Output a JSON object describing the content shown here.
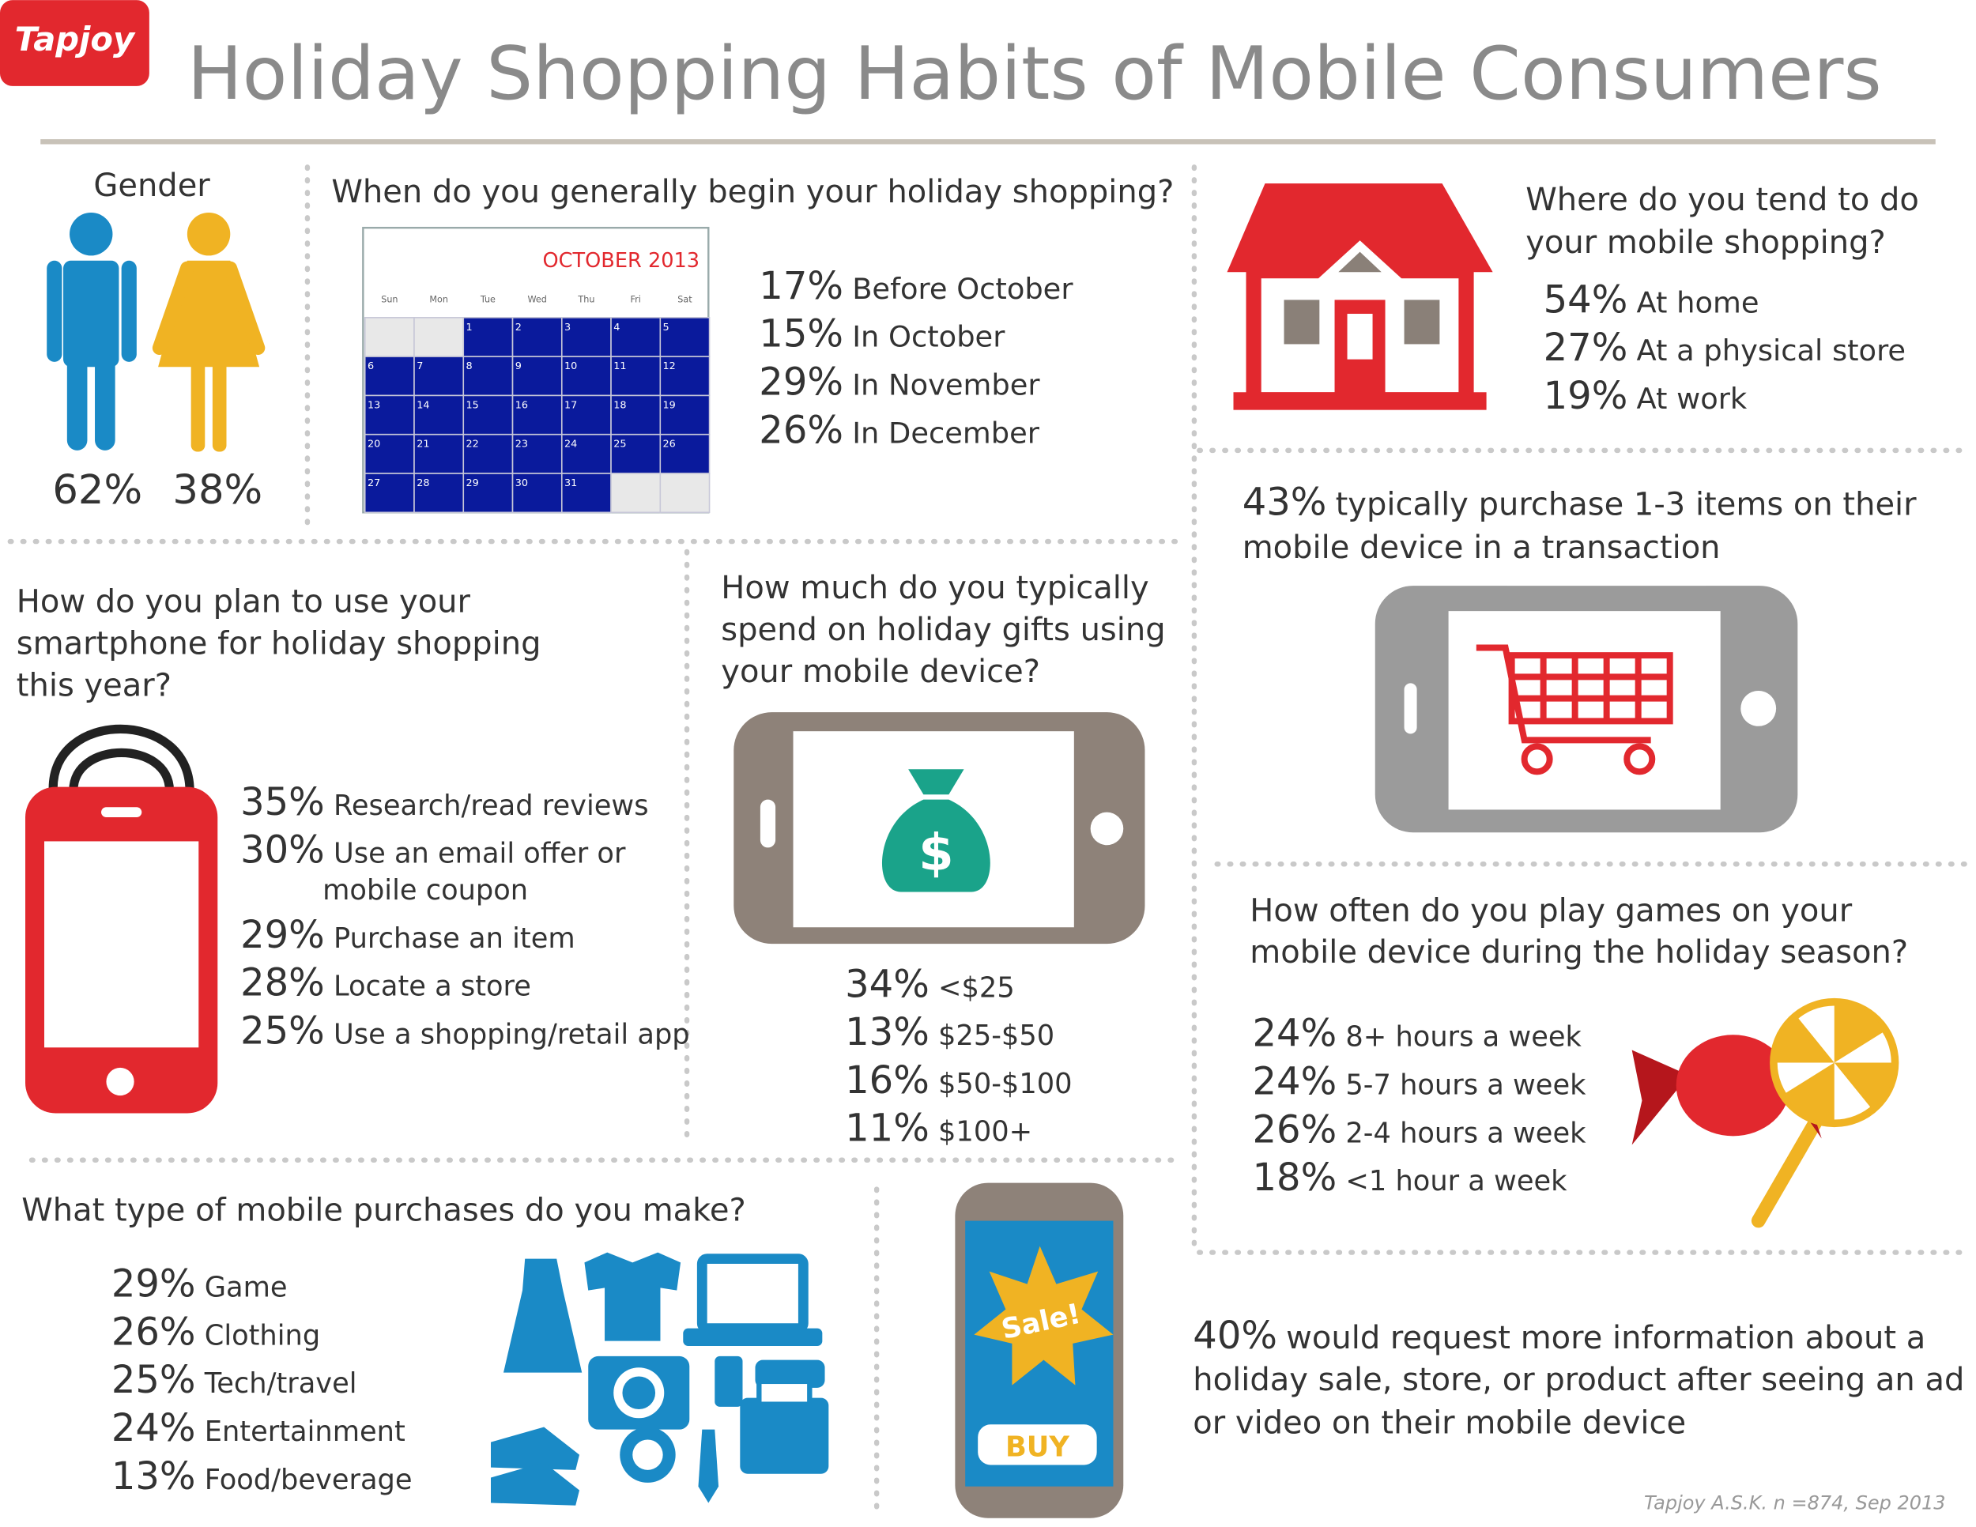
{
  "header": {
    "logo": "Tapjoy",
    "title": "Holiday Shopping Habits of Mobile Consumers"
  },
  "gender": {
    "title": "Gender",
    "male": "62%",
    "female": "38%"
  },
  "start": {
    "question": "When do you generally begin your holiday shopping?",
    "calendar": {
      "month": "OCTOBER 2013",
      "weekdays": [
        "Sun",
        "Mon",
        "Tue",
        "Wed",
        "Thu",
        "Fri",
        "Sat"
      ],
      "days": [
        1,
        2,
        3,
        4,
        5,
        6,
        7,
        8,
        9,
        10,
        11,
        12,
        13,
        14,
        15,
        16,
        17,
        18,
        19,
        20,
        21,
        22,
        23,
        24,
        25,
        26,
        27,
        28,
        29,
        30,
        31
      ]
    },
    "answers": [
      {
        "pct": "17%",
        "label": "Before October"
      },
      {
        "pct": "15%",
        "label": "In October"
      },
      {
        "pct": "29%",
        "label": "In November"
      },
      {
        "pct": "26%",
        "label": "In December"
      }
    ]
  },
  "where": {
    "question": [
      "Where do you tend to do",
      "your mobile shopping?"
    ],
    "answers": [
      {
        "pct": "54%",
        "label": "At home"
      },
      {
        "pct": "27%",
        "label": "At a physical store"
      },
      {
        "pct": "19%",
        "label": "At work"
      }
    ]
  },
  "items": {
    "pct": "43%",
    "lines": [
      "typically purchase 1-3 items on their",
      "mobile device in a transaction"
    ]
  },
  "games": {
    "question": [
      "How often do you play games on your",
      "mobile device during the holiday season?"
    ],
    "answers": [
      {
        "pct": "24%",
        "label": "8+ hours a week"
      },
      {
        "pct": "24%",
        "label": "5-7 hours a week"
      },
      {
        "pct": "26%",
        "label": "2-4 hours a week"
      },
      {
        "pct": "18%",
        "label": "<1 hour a week"
      }
    ]
  },
  "smartphone": {
    "question": [
      "How do you plan to use your",
      "smartphone for holiday shopping",
      "this year?"
    ],
    "answers": [
      {
        "pct": "35%",
        "label": "Research/read reviews"
      },
      {
        "pct": "30%",
        "label": "Use an email offer or",
        "label_continued": "mobile coupon"
      },
      {
        "pct": "29%",
        "label": "Purchase an item"
      },
      {
        "pct": "28%",
        "label": "Locate a store"
      },
      {
        "pct": "25%",
        "label": "Use a shopping/retail app"
      }
    ]
  },
  "spend": {
    "question": [
      "How much do you typically",
      "spend on holiday gifts using",
      "your mobile device?"
    ],
    "answers": [
      {
        "pct": "34%",
        "label": "<$25"
      },
      {
        "pct": "13%",
        "label": "$25-$50"
      },
      {
        "pct": "16%",
        "label": "$50-$100"
      },
      {
        "pct": "11%",
        "label": "$100+"
      }
    ]
  },
  "purchases": {
    "question": "What type of mobile purchases do you make?",
    "answers": [
      {
        "pct": "29%",
        "label": "Game"
      },
      {
        "pct": "26%",
        "label": "Clothing"
      },
      {
        "pct": "25%",
        "label": "Tech/travel"
      },
      {
        "pct": "24%",
        "label": "Entertainment"
      },
      {
        "pct": "13%",
        "label": "Food/beverage"
      }
    ]
  },
  "ad": {
    "sale": "Sale!",
    "buy": "BUY",
    "pct": "40%",
    "lines": [
      "would request more information about a",
      "holiday sale, store, or product after seeing an ad",
      "or video on their mobile device"
    ]
  },
  "source": "Tapjoy A.S.K. n =874, Sep 2013"
}
